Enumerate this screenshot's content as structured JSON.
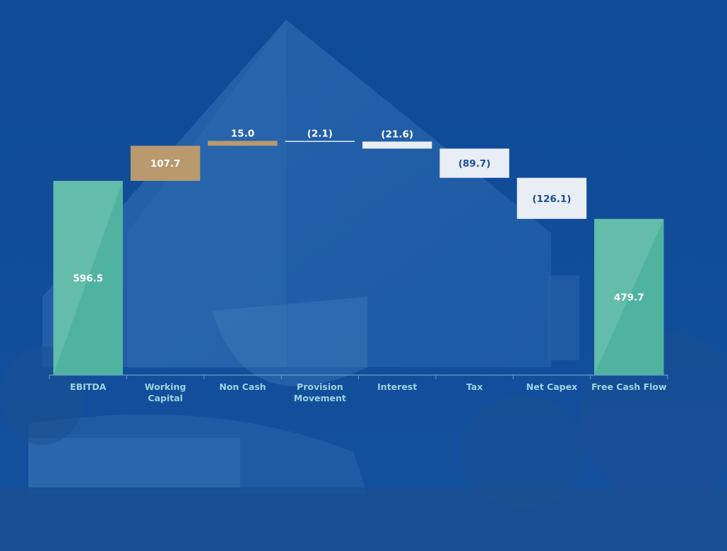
{
  "chart_data": {
    "type": "bar",
    "subtype": "waterfall",
    "title": "",
    "xlabel": "",
    "ylabel": "",
    "ylim": [
      0,
      840
    ],
    "grid": false,
    "legend": "none",
    "categories": [
      "EBITDA",
      "Working Capital",
      "Non Cash",
      "Provision Movement",
      "Interest",
      "Tax",
      "Net Capex",
      "Free Cash Flow"
    ],
    "values": [
      596.5,
      107.7,
      15.0,
      -2.1,
      -21.6,
      -89.7,
      -126.1,
      479.7
    ],
    "data_labels": [
      "596.5",
      "107.7",
      "15.0",
      "(2.1)",
      "(21.6)",
      "(89.7)",
      "(126.1)",
      "479.7"
    ],
    "bar_kinds": [
      "total",
      "increase",
      "increase",
      "decrease",
      "decrease",
      "decrease",
      "decrease",
      "total"
    ],
    "colors": {
      "total": "#4fb3a0",
      "increase": "#b89a6e",
      "decrease": "#e8edf6",
      "total_label": "#ffffff",
      "increase_label": "#ffffff",
      "decrease_label": "#1f4f8f",
      "category_label": "#9fd3e0",
      "axis": "#5fa0c8",
      "background": "#1a4f98"
    }
  }
}
